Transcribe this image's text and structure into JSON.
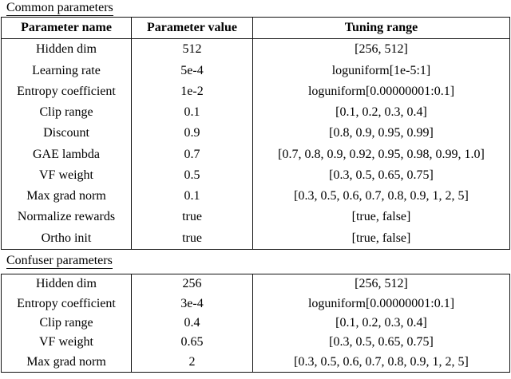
{
  "page": {
    "background": "#ffffff",
    "text_color": "#000000",
    "border_color": "#111111"
  },
  "sections": [
    {
      "title": "Common parameters",
      "columns": [
        "Parameter name",
        "Parameter value",
        "Tuning range"
      ],
      "rows": [
        {
          "name": "Hidden dim",
          "value": "512",
          "range": "[256, 512]"
        },
        {
          "name": "Learning rate",
          "value": "5e-4",
          "range": "loguniform[1e-5:1]"
        },
        {
          "name": "Entropy coefficient",
          "value": "1e-2",
          "range": "loguniform[0.00000001:0.1]"
        },
        {
          "name": "Clip range",
          "value": "0.1",
          "range": "[0.1, 0.2, 0.3, 0.4]"
        },
        {
          "name": "Discount",
          "value": "0.9",
          "range": "[0.8, 0.9, 0.95, 0.99]"
        },
        {
          "name": "GAE lambda",
          "value": "0.7",
          "range": "[0.7, 0.8, 0.9, 0.92, 0.95, 0.98, 0.99, 1.0]"
        },
        {
          "name": "VF weight",
          "value": "0.5",
          "range": "[0.3, 0.5, 0.65, 0.75]"
        },
        {
          "name": "Max grad norm",
          "value": "0.1",
          "range": "[0.3, 0.5, 0.6, 0.7, 0.8, 0.9, 1, 2, 5]"
        },
        {
          "name": "Normalize rewards",
          "value": "true",
          "range": "[true, false]"
        },
        {
          "name": "Ortho init",
          "value": "true",
          "range": "[true, false]"
        }
      ]
    },
    {
      "title": "Confuser parameters",
      "rows": [
        {
          "name": "Hidden dim",
          "value": "256",
          "range": "[256, 512]"
        },
        {
          "name": "Entropy coefficient",
          "value": "3e-4",
          "range": "loguniform[0.00000001:0.1]"
        },
        {
          "name": "Clip range",
          "value": "0.4",
          "range": "[0.1, 0.2, 0.3, 0.4]"
        },
        {
          "name": "VF weight",
          "value": "0.65",
          "range": "[0.3, 0.5, 0.65, 0.75]"
        },
        {
          "name": "Max grad norm",
          "value": "2",
          "range": "[0.3, 0.5, 0.6, 0.7, 0.8, 0.9, 1, 2, 5]"
        }
      ]
    }
  ]
}
